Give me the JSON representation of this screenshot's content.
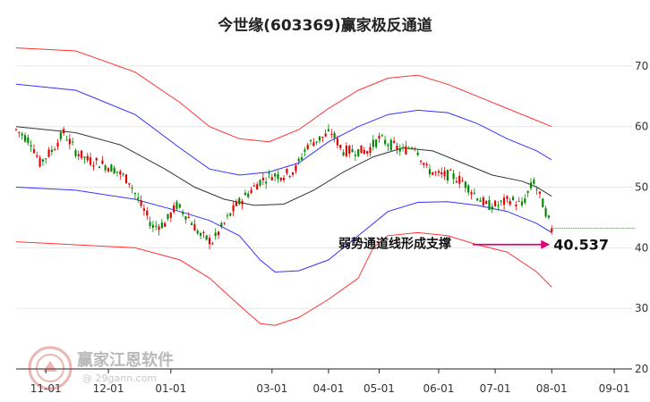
{
  "chart_data": {
    "type": "candlestick-with-channels",
    "title": "今世缘(603369)赢家极反通道",
    "xlabel": "",
    "ylabel": "",
    "ylim": [
      20,
      75
    ],
    "y_ticks": [
      70,
      60,
      50,
      40,
      30,
      20
    ],
    "x_ticks": [
      {
        "label": "11-01",
        "index": 10
      },
      {
        "label": "12-01",
        "index": 31
      },
      {
        "label": "01-01",
        "index": 52
      },
      {
        "label": "03-01",
        "index": 86
      },
      {
        "label": "04-01",
        "index": 105
      },
      {
        "label": "05-01",
        "index": 122
      },
      {
        "label": "06-01",
        "index": 142
      },
      {
        "label": "07-01",
        "index": 161
      },
      {
        "label": "08-01",
        "index": 180
      },
      {
        "label": "09-01",
        "index": 201
      }
    ],
    "num_bars": 205,
    "price_anchors": [
      [
        0,
        59.5
      ],
      [
        5,
        57.5
      ],
      [
        8,
        54
      ],
      [
        12,
        56
      ],
      [
        16,
        59
      ],
      [
        20,
        56
      ],
      [
        24,
        54.5
      ],
      [
        28,
        54
      ],
      [
        33,
        53
      ],
      [
        38,
        51
      ],
      [
        42,
        47
      ],
      [
        46,
        43.5
      ],
      [
        50,
        44
      ],
      [
        54,
        47
      ],
      [
        58,
        45
      ],
      [
        62,
        42
      ],
      [
        66,
        41
      ],
      [
        70,
        44
      ],
      [
        74,
        47
      ],
      [
        78,
        49
      ],
      [
        82,
        51
      ],
      [
        86,
        52
      ],
      [
        90,
        52
      ],
      [
        94,
        53
      ],
      [
        98,
        57
      ],
      [
        102,
        58
      ],
      [
        106,
        59
      ],
      [
        110,
        56
      ],
      [
        114,
        56
      ],
      [
        118,
        56
      ],
      [
        122,
        58
      ],
      [
        126,
        57
      ],
      [
        130,
        56
      ],
      [
        134,
        57
      ],
      [
        138,
        53
      ],
      [
        142,
        52
      ],
      [
        146,
        52
      ],
      [
        150,
        51
      ],
      [
        154,
        49
      ],
      [
        158,
        47
      ],
      [
        162,
        47
      ],
      [
        166,
        48
      ],
      [
        170,
        47
      ],
      [
        174,
        51
      ],
      [
        178,
        46
      ],
      [
        180,
        43
      ],
      [
        182,
        43.2
      ],
      [
        205,
        43.2
      ]
    ],
    "channel_lines": [
      {
        "role": "outer-upper",
        "color": "#ff3333",
        "points": [
          [
            0,
            73
          ],
          [
            20,
            72.5
          ],
          [
            40,
            69
          ],
          [
            55,
            64
          ],
          [
            65,
            60
          ],
          [
            75,
            58
          ],
          [
            85,
            57.5
          ],
          [
            95,
            59.5
          ],
          [
            105,
            63
          ],
          [
            115,
            66
          ],
          [
            125,
            68
          ],
          [
            135,
            68.5
          ],
          [
            145,
            67
          ],
          [
            155,
            65
          ],
          [
            165,
            63
          ],
          [
            175,
            61
          ],
          [
            180,
            60
          ]
        ]
      },
      {
        "role": "inner-upper",
        "color": "#3333ff",
        "points": [
          [
            0,
            67
          ],
          [
            20,
            66
          ],
          [
            40,
            62
          ],
          [
            55,
            56.5
          ],
          [
            65,
            53
          ],
          [
            75,
            52
          ],
          [
            85,
            52.5
          ],
          [
            95,
            54
          ],
          [
            105,
            57.5
          ],
          [
            115,
            60
          ],
          [
            125,
            62
          ],
          [
            135,
            62.7
          ],
          [
            145,
            62.3
          ],
          [
            155,
            60.5
          ],
          [
            165,
            58
          ],
          [
            175,
            56
          ],
          [
            180,
            54.5
          ]
        ]
      },
      {
        "role": "middle",
        "color": "#333333",
        "points": [
          [
            0,
            60
          ],
          [
            20,
            59
          ],
          [
            35,
            57
          ],
          [
            50,
            53
          ],
          [
            60,
            50
          ],
          [
            70,
            48
          ],
          [
            80,
            47
          ],
          [
            90,
            47.2
          ],
          [
            100,
            49.5
          ],
          [
            110,
            52.5
          ],
          [
            120,
            55
          ],
          [
            130,
            56.5
          ],
          [
            140,
            56
          ],
          [
            150,
            54
          ],
          [
            160,
            52
          ],
          [
            170,
            51
          ],
          [
            175,
            50
          ],
          [
            180,
            48.5
          ]
        ]
      },
      {
        "role": "inner-lower",
        "color": "#3333ff",
        "points": [
          [
            0,
            50
          ],
          [
            20,
            49.5
          ],
          [
            40,
            48
          ],
          [
            55,
            46
          ],
          [
            65,
            44.5
          ],
          [
            75,
            42
          ],
          [
            82,
            38
          ],
          [
            87,
            36
          ],
          [
            95,
            36.2
          ],
          [
            105,
            38
          ],
          [
            115,
            42
          ],
          [
            125,
            46
          ],
          [
            135,
            47.5
          ],
          [
            145,
            47.6
          ],
          [
            155,
            47
          ],
          [
            165,
            46
          ],
          [
            175,
            44
          ],
          [
            180,
            42.5
          ]
        ]
      },
      {
        "role": "outer-lower",
        "color": "#ff3333",
        "points": [
          [
            0,
            41
          ],
          [
            20,
            40.5
          ],
          [
            40,
            40
          ],
          [
            55,
            38
          ],
          [
            65,
            35
          ],
          [
            75,
            30.5
          ],
          [
            82,
            27.5
          ],
          [
            87,
            27.2
          ],
          [
            95,
            28.5
          ],
          [
            105,
            31.5
          ],
          [
            115,
            35
          ],
          [
            120,
            40
          ],
          [
            125,
            42
          ],
          [
            135,
            42.5
          ],
          [
            145,
            42
          ],
          [
            155,
            40.5
          ],
          [
            165,
            39.3
          ],
          [
            175,
            36
          ],
          [
            180,
            33.5
          ]
        ]
      }
    ],
    "last_value_line": {
      "value": 43.2,
      "from_index": 180,
      "to_index": 205,
      "color": "#00aa00"
    },
    "annotation": {
      "text": "弱势通道线形成支撑",
      "value_text": "40.537",
      "value": 40.537,
      "arrow_color": "#e0007a"
    }
  },
  "watermark": {
    "brand": "赢家江恩软件",
    "url": "@ 29gann.com"
  }
}
